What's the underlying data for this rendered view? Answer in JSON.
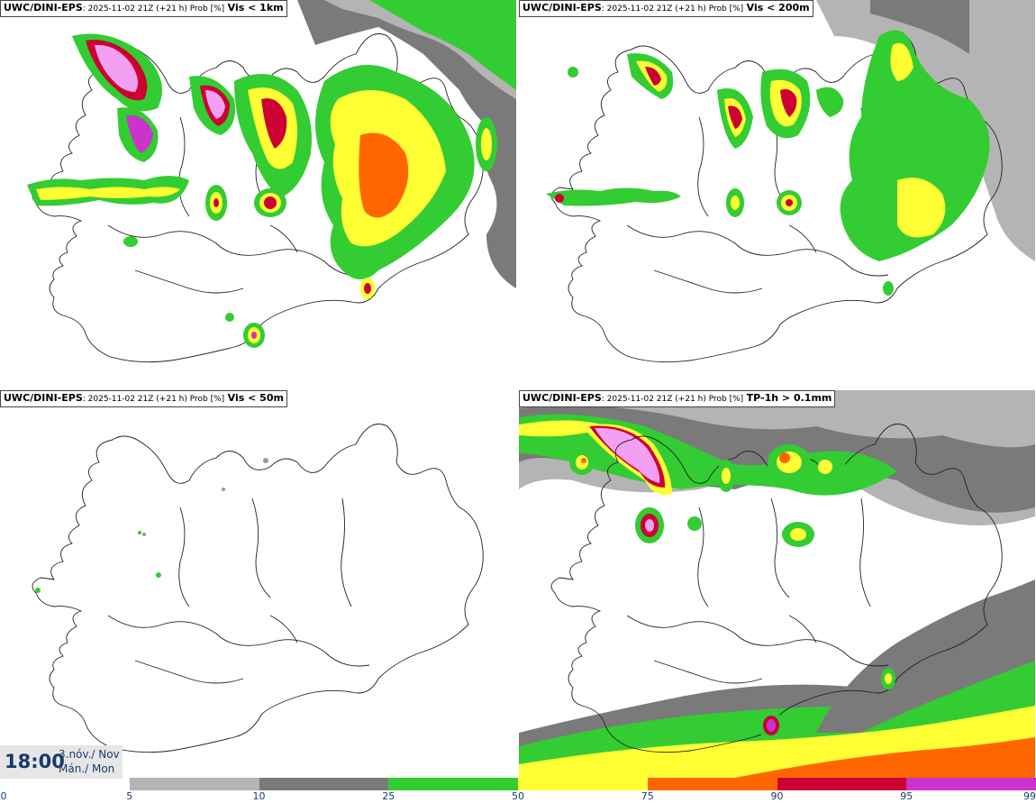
{
  "panels": [
    {
      "model": "UWC/DINI-EPS",
      "meta": ": 2025-11-02 21Z (+21 h) Prob [%]",
      "field": "Vis < 1km"
    },
    {
      "model": "UWC/DINI-EPS",
      "meta": ": 2025-11-02 21Z (+21 h) Prob [%]",
      "field": "Vis < 200m"
    },
    {
      "model": "UWC/DINI-EPS",
      "meta": ": 2025-11-02 21Z (+21 h) Prob [%]",
      "field": "Vis < 50m"
    },
    {
      "model": "UWC/DINI-EPS",
      "meta": ": 2025-11-02 21Z (+21 h) Prob [%]",
      "field": "TP-1h > 0.1mm"
    }
  ],
  "time": {
    "clock": "18:00",
    "date": "3.nóv./ Nov",
    "day": "Mán./ Mon"
  },
  "colorbar": {
    "ticks": [
      "0",
      "5",
      "10",
      "25",
      "50",
      "75",
      "90",
      "95",
      "99"
    ],
    "colors": [
      "#ffffff",
      "#b4b4b4",
      "#7a7a7a",
      "#33cc33",
      "#ffff33",
      "#ff6600",
      "#cc0033",
      "#cc33cc",
      "#f2a0f2"
    ]
  }
}
